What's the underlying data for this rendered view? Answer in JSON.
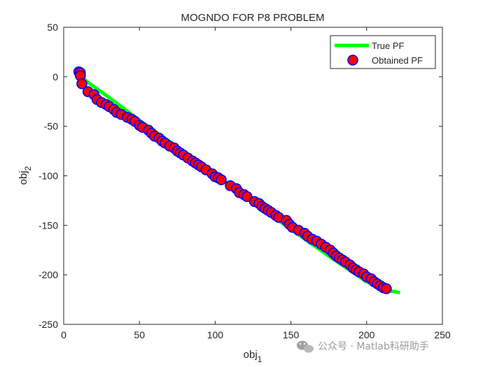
{
  "watermark": "公众号 · Matlab科研助手",
  "chart_data": {
    "type": "scatter",
    "title": "MOGNDO FOR P8 PROBLEM",
    "xlabel": "obj",
    "xlabel_sub": "1",
    "ylabel": "obj",
    "ylabel_sub": "2",
    "xlim": [
      0,
      250
    ],
    "ylim": [
      -250,
      50
    ],
    "xticks": [
      0,
      50,
      100,
      150,
      200,
      250
    ],
    "yticks": [
      -250,
      -200,
      -150,
      -100,
      -50,
      0,
      50
    ],
    "grid": false,
    "legend_position": "top-right",
    "colors": {
      "true_pf": "#00ff00",
      "marker_fill": "#ff0000",
      "marker_edge": "#0000ff"
    },
    "series": [
      {
        "name": "True PF",
        "kind": "line",
        "x": [
          11,
          30,
          50,
          75,
          100,
          125,
          150,
          175,
          200,
          215,
          222
        ],
        "y": [
          0,
          -21,
          -44,
          -71,
          -99,
          -127,
          -154,
          -181,
          -207,
          -216,
          -218
        ]
      },
      {
        "name": "Obtained PF",
        "kind": "scatter",
        "x": [
          10,
          11,
          11,
          12,
          16,
          20,
          22,
          25,
          28,
          30,
          33,
          35,
          38,
          42,
          45,
          47,
          50,
          52,
          56,
          58,
          60,
          63,
          65,
          67,
          70,
          73,
          75,
          77,
          79,
          82,
          85,
          87,
          89,
          91,
          94,
          98,
          100,
          102,
          104,
          110,
          114,
          116,
          119,
          121,
          126,
          129,
          131,
          133,
          135,
          137,
          140,
          142,
          147,
          149,
          151,
          155,
          159,
          161,
          164,
          167,
          170,
          173,
          176,
          178,
          180,
          182,
          184,
          186,
          189,
          191,
          193,
          195,
          198,
          200,
          203,
          205,
          207,
          209,
          211,
          213
        ],
        "y": [
          5,
          4,
          1,
          -7,
          -15,
          -18,
          -23,
          -26,
          -28,
          -30,
          -33,
          -36,
          -38,
          -41,
          -43,
          -45,
          -49,
          -51,
          -54,
          -57,
          -60,
          -62,
          -65,
          -67,
          -70,
          -72,
          -75,
          -77,
          -79,
          -82,
          -85,
          -87,
          -89,
          -91,
          -94,
          -98,
          -101,
          -102,
          -104,
          -110,
          -113,
          -117,
          -119,
          -121,
          -126,
          -128,
          -131,
          -133,
          -135,
          -137,
          -140,
          -142,
          -145,
          -149,
          -152,
          -155,
          -158,
          -161,
          -164,
          -166,
          -169,
          -172,
          -175,
          -178,
          -181,
          -183,
          -185,
          -187,
          -190,
          -193,
          -195,
          -197,
          -199,
          -202,
          -204,
          -207,
          -209,
          -211,
          -213,
          -214
        ]
      }
    ]
  }
}
